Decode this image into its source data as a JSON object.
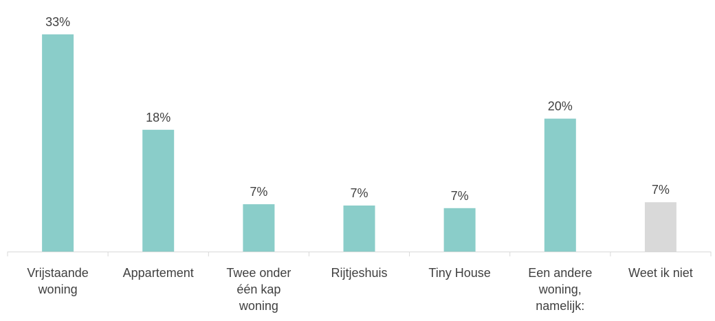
{
  "chart_data": {
    "type": "bar",
    "categories": [
      [
        "Vrijstaande",
        "woning"
      ],
      [
        "Appartement"
      ],
      [
        "Twee onder",
        "één kap",
        "woning"
      ],
      [
        "Rijtjeshuis"
      ],
      [
        "Tiny House"
      ],
      [
        "Een andere",
        "woning,",
        "namelijk:"
      ],
      [
        "Weet ik niet"
      ]
    ],
    "values": [
      33,
      18,
      7,
      7,
      7,
      20,
      7
    ],
    "heights": [
      33,
      18.5,
      7.2,
      7.0,
      6.6,
      20.2,
      7.5
    ],
    "value_labels": [
      "33%",
      "18%",
      "7%",
      "7%",
      "7%",
      "20%",
      "7%"
    ],
    "bar_colors": [
      "#8acdc9",
      "#8acdc9",
      "#8acdc9",
      "#8acdc9",
      "#8acdc9",
      "#8acdc9",
      "#d9d9d9"
    ],
    "axis_color": "#d9d9d9",
    "ylim": [
      0,
      33
    ],
    "grid": false,
    "legend": "none",
    "title": "",
    "xlabel": "",
    "ylabel": ""
  }
}
